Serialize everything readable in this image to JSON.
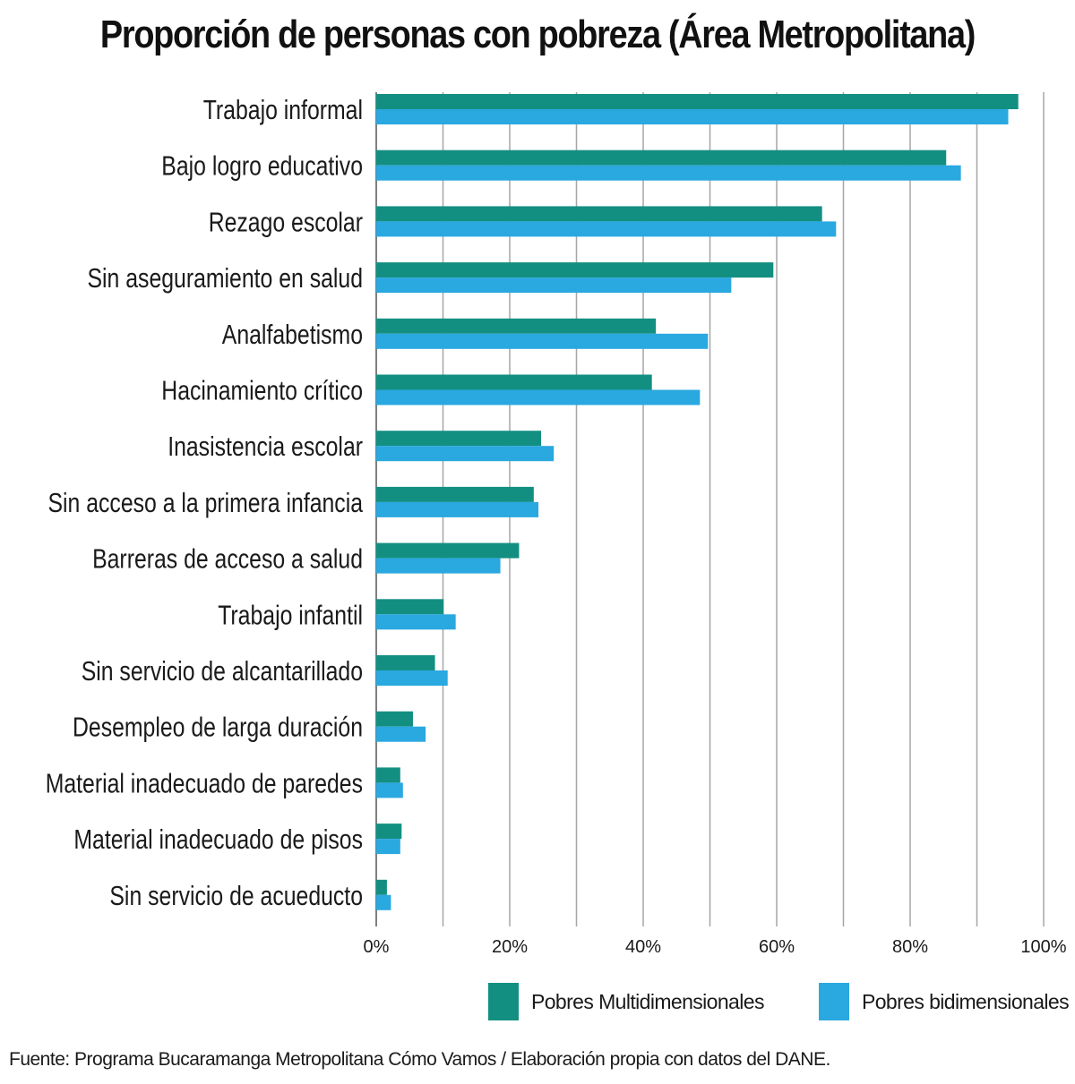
{
  "chart_data": {
    "type": "bar",
    "orientation": "horizontal",
    "title": "Proporción de personas con pobreza (Área Metropolitana)",
    "categories": [
      "Trabajo informal",
      "Bajo logro educativo",
      "Rezago escolar",
      "Sin aseguramiento en salud",
      "Analfabetismo",
      "Hacinamiento crítico",
      "Inasistencia escolar",
      "Sin acceso a la primera infancia",
      "Barreras de acceso a salud",
      "Trabajo infantil",
      "Sin servicio de alcantarillado",
      "Desempleo de larga duración",
      "Material inadecuado de paredes",
      "Material inadecuado de pisos",
      "Sin servicio de acueducto"
    ],
    "series": [
      {
        "name": "Pobres Multidimensionales",
        "color": "#138f82",
        "values": [
          96.2,
          85.4,
          66.8,
          59.5,
          41.9,
          41.3,
          24.7,
          23.6,
          21.4,
          10.1,
          8.8,
          5.5,
          3.6,
          3.8,
          1.6
        ]
      },
      {
        "name": "Pobres bidimensionales",
        "color": "#2aa8e0",
        "values": [
          94.7,
          87.6,
          68.9,
          53.2,
          49.7,
          48.5,
          26.6,
          24.3,
          18.6,
          11.9,
          10.7,
          7.4,
          4.0,
          3.6,
          2.2
        ]
      }
    ],
    "xlim": [
      0,
      100
    ],
    "xticks": [
      0,
      10,
      20,
      30,
      40,
      50,
      60,
      70,
      80,
      90,
      100
    ],
    "xtick_labels": [
      "0%",
      "",
      "20%",
      "",
      "40%",
      "",
      "60%",
      "",
      "80%",
      "",
      "100%"
    ],
    "grid": true,
    "legend_position": "bottom-right",
    "source": "Fuente:  Programa Bucaramanga Metropolitana Cómo Vamos / Elaboración propia con datos del DANE."
  }
}
